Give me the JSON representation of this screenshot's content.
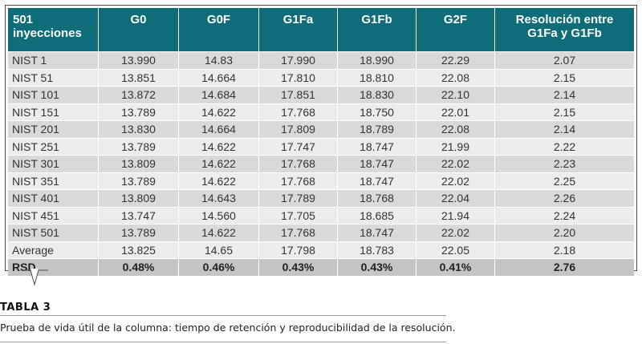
{
  "table": {
    "headers": [
      "501\ninyecciones",
      "G0",
      "G0F",
      "G1Fa",
      "G1Fb",
      "G2F",
      "Resolución entre\nG1Fa y G1Fb"
    ],
    "rows": [
      [
        "NIST 1",
        "13.990",
        "14.83",
        "17.990",
        "18.990",
        "22.29",
        "2.07"
      ],
      [
        "NIST 51",
        "13.851",
        "14.664",
        "17.810",
        "18.810",
        "22.08",
        "2.15"
      ],
      [
        "NIST 101",
        "13.872",
        "14.684",
        "17.851",
        "18.830",
        "22.10",
        "2.14"
      ],
      [
        "NIST 151",
        "13.789",
        "14.622",
        "17.768",
        "18.750",
        "22.01",
        "2.15"
      ],
      [
        "NIST 201",
        "13.830",
        "14.664",
        "17.809",
        "18.789",
        "22.08",
        "2.14"
      ],
      [
        "NIST 251",
        "13.789",
        "14.622",
        "17.747",
        "18.747",
        "21.99",
        "2.22"
      ],
      [
        "NIST 301",
        "13.809",
        "14.622",
        "17.768",
        "18.747",
        "22.02",
        "2.23"
      ],
      [
        "NIST 351",
        "13.789",
        "14.622",
        "17.768",
        "18.747",
        "22.02",
        "2.25"
      ],
      [
        "NIST 401",
        "13.809",
        "14.643",
        "17.789",
        "18.768",
        "22.04",
        "2.26"
      ],
      [
        "NIST 451",
        "13.747",
        "14.560",
        "17.705",
        "18.685",
        "21.94",
        "2.24"
      ],
      [
        "NIST 501",
        "13.789",
        "14.622",
        "17.768",
        "18.747",
        "22.02",
        "2.20"
      ],
      [
        "Average",
        "13.825",
        "14.65",
        "17.798",
        "18.783",
        "22.05",
        "2.18"
      ]
    ],
    "rsd_row": [
      "RSD",
      "0.48%",
      "0.46%",
      "0.43%",
      "0.43%",
      "0.41%",
      "2.76"
    ]
  },
  "caption": {
    "title": "TABLA 3",
    "text": "Prueba de vida útil de la columna: tiempo de retención y reproducibilidad de la resolución."
  },
  "colors": {
    "header_bg": "#0e6d78",
    "row_dark": "#d9d9d9",
    "row_light": "#ececec"
  }
}
